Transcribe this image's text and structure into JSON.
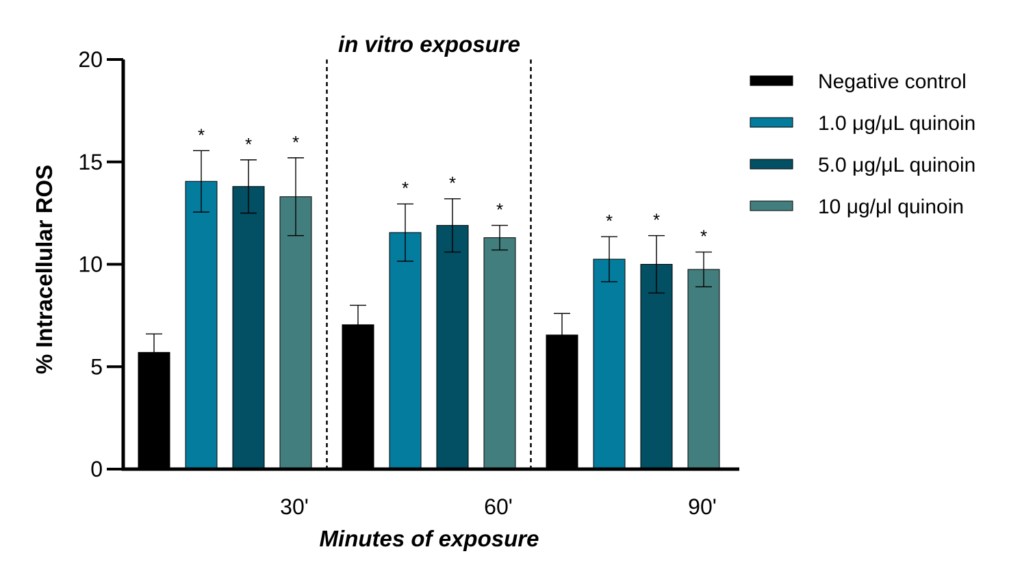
{
  "chart_data": {
    "type": "bar",
    "title": "",
    "xlabel": "Minutes of exposure",
    "ylabel": "% Intracellular ROS",
    "annotation": "in vitro exposure",
    "categories": [
      "30'",
      "60'",
      "90'"
    ],
    "ylim": [
      0,
      20
    ],
    "yticks": [
      0,
      5,
      10,
      15,
      20
    ],
    "legend_position": "top-right",
    "grid": false,
    "significance_marker": "*",
    "series": [
      {
        "name": "Negative control",
        "color": "#000000",
        "values": [
          5.7,
          7.05,
          6.55
        ],
        "errors": [
          0.9,
          0.95,
          1.05
        ],
        "significant": [
          false,
          false,
          false
        ]
      },
      {
        "name": "1.0 μg/μL quinoin",
        "color": "#037C9E",
        "values": [
          14.05,
          11.55,
          10.25
        ],
        "errors": [
          1.5,
          1.4,
          1.1
        ],
        "significant": [
          true,
          true,
          true
        ]
      },
      {
        "name": "5.0 μg/μL quinoin",
        "color": "#034F63",
        "values": [
          13.8,
          11.9,
          10.0
        ],
        "errors": [
          1.3,
          1.3,
          1.4
        ],
        "significant": [
          true,
          true,
          true
        ]
      },
      {
        "name": "10 μg/μl quinoin",
        "color": "#437E7E",
        "values": [
          13.3,
          11.3,
          9.75
        ],
        "errors": [
          1.9,
          0.6,
          0.85
        ],
        "significant": [
          true,
          true,
          true
        ]
      }
    ]
  }
}
